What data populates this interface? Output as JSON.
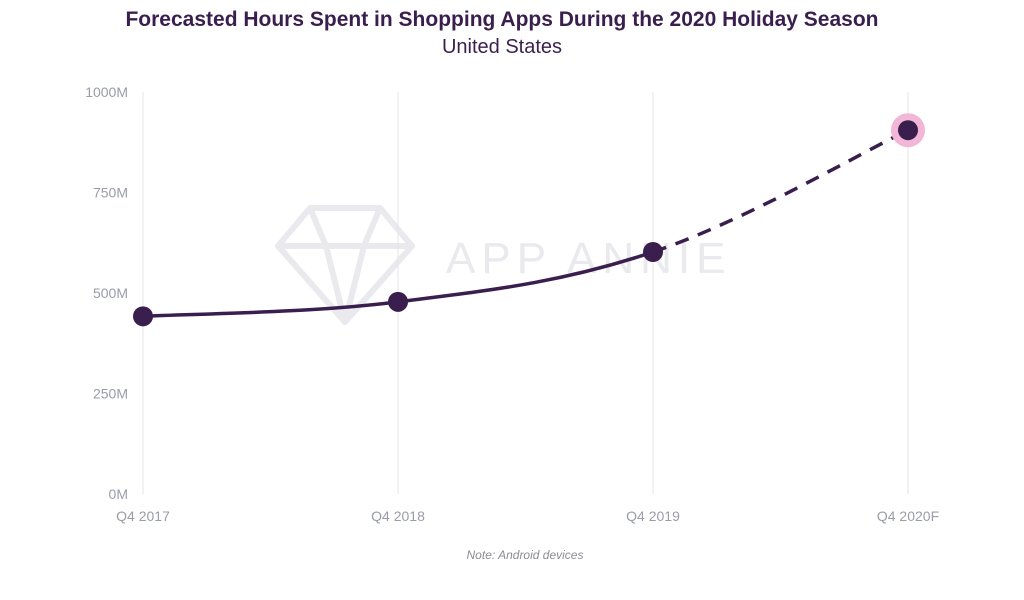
{
  "header": {
    "title": "Forecasted Hours Spent in Shopping Apps During the 2020 Holiday Season",
    "subtitle": "United States"
  },
  "note": "Note: Android devices",
  "watermark": {
    "text": "APP ANNIE",
    "icon": "diamond-icon"
  },
  "colors": {
    "line": "#3a1f4e",
    "forecast_halo": "#f2b6d6",
    "grid": "#e4e4e8",
    "tick_text": "#9a9ca8"
  },
  "chart_data": {
    "type": "line",
    "categories": [
      "Q4 2017",
      "Q4 2018",
      "Q4 2019",
      "Q4 2020F"
    ],
    "values": [
      442,
      478,
      602,
      905
    ],
    "value_unit": "millions of hours",
    "actual_through_index": 2,
    "forecast_index": 3,
    "yticks": [
      0,
      250,
      500,
      750,
      1000
    ],
    "ytick_labels": [
      "0M",
      "250M",
      "500M",
      "750M",
      "1000M"
    ],
    "ylim": [
      0,
      1000
    ],
    "grid": {
      "vertical": true,
      "horizontal": false
    },
    "title": "Forecasted Hours Spent in Shopping Apps During the 2020 Holiday Season",
    "subtitle": "United States",
    "xlabel": "",
    "ylabel": ""
  }
}
